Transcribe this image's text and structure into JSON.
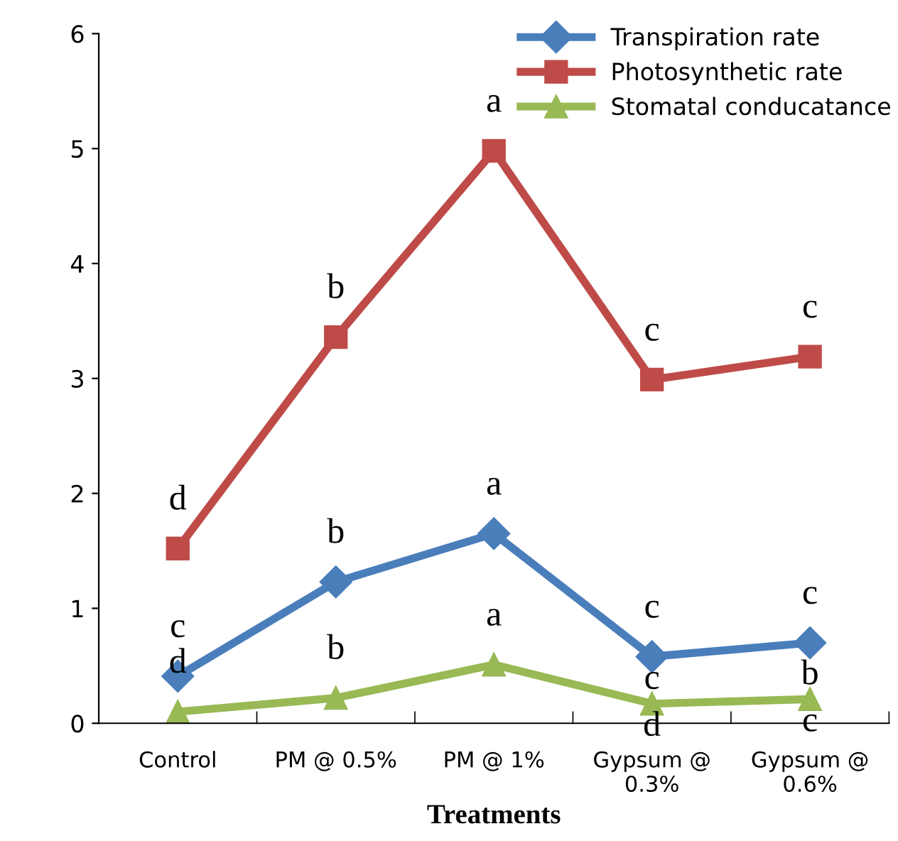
{
  "chart_data": {
    "type": "line",
    "xlabel": "Treatments",
    "categories": [
      "Control",
      "PM @ 0.5%",
      "PM @ 1%",
      "Gypsum @\n0.3%",
      "Gypsum @\n0.6%"
    ],
    "series": [
      {
        "name": "Transpiration rate",
        "color": "#4a7ebb",
        "marker": "diamond",
        "values": [
          0.41,
          1.23,
          1.65,
          0.58,
          0.7
        ],
        "value_labels": [
          "c",
          "b",
          "a",
          "c",
          "c"
        ]
      },
      {
        "name": "Photosynthetic rate",
        "color": "#be4b48",
        "marker": "square",
        "values": [
          1.52,
          3.36,
          4.98,
          2.99,
          3.19
        ],
        "value_labels": [
          "d",
          "b",
          "a",
          "c",
          "c"
        ]
      },
      {
        "name": "Stomatal conducatance",
        "color": "#98b954",
        "marker": "triangle",
        "values": [
          0.1,
          0.22,
          0.51,
          0.17,
          0.21
        ],
        "value_labels": [
          "d",
          "b",
          "a",
          "c\nd",
          "b\nc"
        ]
      }
    ],
    "ylim": [
      0,
      6
    ],
    "yticks": [
      0,
      1,
      2,
      3,
      4,
      5,
      6
    ],
    "grid": false,
    "legend": "top right",
    "line_style": "solid"
  }
}
